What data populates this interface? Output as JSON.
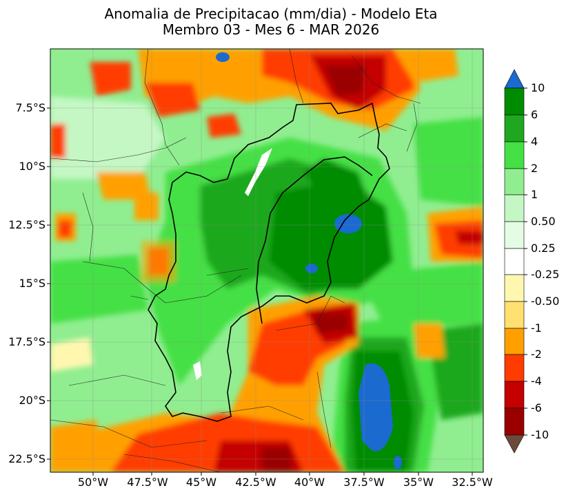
{
  "title": {
    "line1": "Anomalia de Precipitacao (mm/dia) - Modelo Eta",
    "line2": "Membro 03 - Mes 6 - MAR 2026"
  },
  "map": {
    "lat_labels": [
      "7.5°S",
      "10°S",
      "12.5°S",
      "15°S",
      "17.5°S",
      "20°S",
      "22.5°S"
    ],
    "lon_labels": [
      "50°W",
      "47.5°W",
      "45°W",
      "42.5°W",
      "40°W",
      "37.5°W",
      "35°W",
      "32.5°W"
    ]
  },
  "colorbar": {
    "labels": [
      "10",
      "6",
      "4",
      "2",
      "1",
      "0.50",
      "0.25",
      "-0.25",
      "-0.50",
      "-1",
      "-2",
      "-4",
      "-6",
      "-10"
    ],
    "colors": {
      "max_arrow": "#1a6ad0",
      "c_6_10": "#008c00",
      "c_4_6": "#1fa81f",
      "c_2_4": "#44e044",
      "c_1_2": "#90ee90",
      "c_05_1": "#c4f7c4",
      "c_025_05": "#e4fce4",
      "c_neutral": "#ffffff",
      "c_m05_m025": "#fff7b0",
      "c_m1_m05": "#ffe070",
      "c_m2_m1": "#ffa000",
      "c_m4_m2": "#ff3c00",
      "c_m6_m4": "#c40000",
      "c_m10_m6": "#9a0000",
      "min_arrow": "#6b4a3c"
    }
  }
}
